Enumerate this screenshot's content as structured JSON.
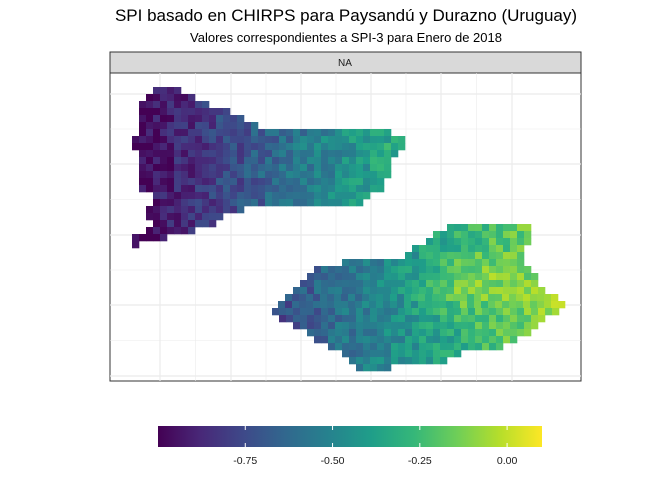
{
  "chart_data": {
    "type": "heatmap",
    "title": "SPI basado en CHIRPS para Paysandú y Durazno (Uruguay)",
    "subtitle": "Valores correspondientes a SPI-3 para Enero de 2018",
    "facet_label": "NA",
    "xlabel": "",
    "ylabel": "",
    "grid": true,
    "legend": {
      "position": "bottom",
      "range": [
        -1.0,
        0.1
      ],
      "ticks": [
        -0.75,
        -0.5,
        -0.25,
        0.0
      ],
      "tick_labels": [
        "-0.75",
        "-0.50",
        "-0.25",
        "0.00"
      ]
    },
    "colormap": [
      "#440154",
      "#482878",
      "#3e4989",
      "#31688e",
      "#26828e",
      "#1f9e89",
      "#35b779",
      "#6ece58",
      "#b5de2b",
      "#fde725"
    ],
    "regions": [
      {
        "name": "Paysandú",
        "min_value": -1.0,
        "max_value": -0.3,
        "gradient": "values increase from west to east"
      },
      {
        "name": "Durazno",
        "min_value": -0.75,
        "max_value": 0.05,
        "gradient": "values increase from west to east, maximum in the east-centre"
      }
    ]
  }
}
